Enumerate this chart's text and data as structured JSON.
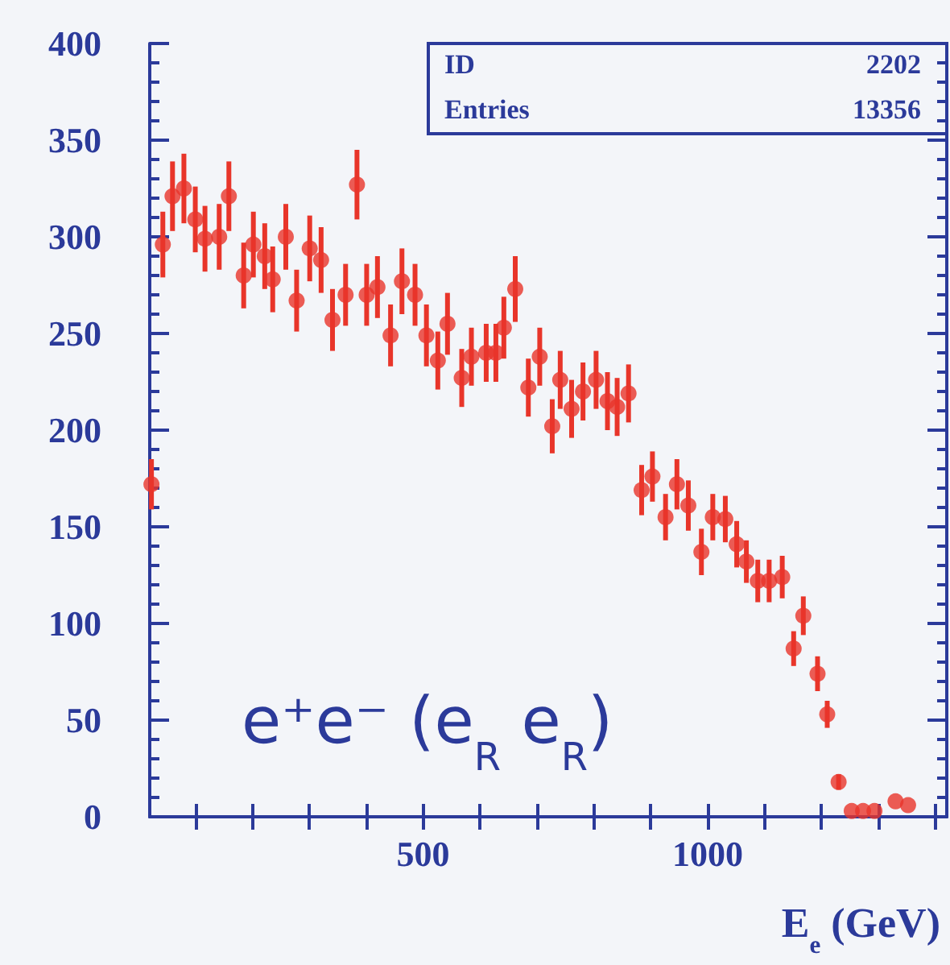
{
  "chart_data": {
    "type": "scatter",
    "x": [
      23,
      43,
      60,
      80,
      100,
      117,
      142,
      159,
      185,
      202,
      222,
      236,
      259,
      278,
      301,
      321,
      341,
      364,
      384,
      401,
      420,
      443,
      463,
      486,
      506,
      526,
      543,
      568,
      585,
      611,
      628,
      642,
      662,
      685,
      705,
      727,
      741,
      761,
      781,
      804,
      824,
      841,
      861,
      884,
      903,
      926,
      946,
      966,
      989,
      1009,
      1031,
      1051,
      1068,
      1088,
      1108,
      1131,
      1151,
      1168,
      1193,
      1210,
      1230,
      1253,
      1273,
      1293,
      1330,
      1352
    ],
    "series": [
      {
        "color": "#e8352a",
        "values": [
          172,
          296,
          321,
          325,
          309,
          299,
          300,
          321,
          280,
          296,
          290,
          278,
          300,
          267,
          294,
          288,
          257,
          270,
          327,
          270,
          274,
          249,
          277,
          270,
          249,
          236,
          255,
          227,
          238,
          240,
          240,
          253,
          273,
          222,
          238,
          202,
          226,
          211,
          220,
          226,
          215,
          212,
          219,
          169,
          176,
          155,
          172,
          161,
          137,
          155,
          154,
          141,
          132,
          122,
          122,
          124,
          87,
          104,
          74,
          53,
          18,
          3,
          3,
          3,
          8,
          6
        ],
        "errors": [
          13,
          17,
          18,
          18,
          17,
          17,
          17,
          18,
          17,
          17,
          17,
          17,
          17,
          16,
          17,
          17,
          16,
          16,
          18,
          16,
          16,
          16,
          17,
          16,
          16,
          15,
          16,
          15,
          15,
          15,
          15,
          16,
          17,
          15,
          15,
          14,
          15,
          15,
          15,
          15,
          15,
          15,
          15,
          13,
          13,
          12,
          13,
          13,
          12,
          12,
          12,
          12,
          11,
          11,
          11,
          11,
          9,
          10,
          9,
          7,
          4,
          null,
          null,
          null,
          null,
          null
        ]
      }
    ],
    "xlim": [
      20,
      1420
    ],
    "xticks": [
      {
        "value": 100,
        "label": null
      },
      {
        "value": 200,
        "label": null
      },
      {
        "value": 300,
        "label": null
      },
      {
        "value": 400,
        "label": null
      },
      500,
      {
        "value": 600,
        "label": null
      },
      {
        "value": 700,
        "label": null
      },
      {
        "value": 800,
        "label": null
      },
      {
        "value": 900,
        "label": null
      },
      1000,
      {
        "value": 1100,
        "label": null
      },
      {
        "value": 1200,
        "label": null
      },
      {
        "value": 1300,
        "label": null
      },
      {
        "value": 1400,
        "label": null
      }
    ],
    "ylim": [
      0,
      400
    ],
    "yticks": [
      0,
      50,
      100,
      150,
      200,
      250,
      300,
      350,
      400
    ],
    "xlabel": "E$_{e}$ (GeV)",
    "marker": "circle",
    "grid": false,
    "annotations": [
      "ID",
      "2202",
      "Entries",
      "13356",
      "e⁺e⁻ (e$_{R}$ e$_{R}$)"
    ]
  }
}
